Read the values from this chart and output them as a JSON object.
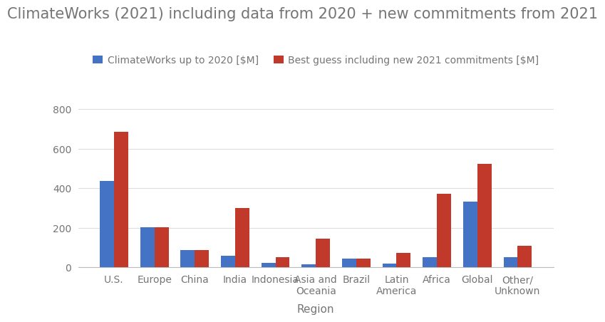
{
  "title": "ClimateWorks (2021) including data from 2020 + new commitments from 2021",
  "xlabel": "Region",
  "categories": [
    "U.S.",
    "Europe",
    "China",
    "India",
    "Indonesia",
    "Asia and\nOceania",
    "Brazil",
    "Latin\nAmerica",
    "Africa",
    "Global",
    "Other/\nUnknown"
  ],
  "series1_label": "ClimateWorks up to 2020 [$M]",
  "series2_label": "Best guess including new 2021 commitments [$M]",
  "series1_values": [
    435,
    202,
    88,
    58,
    22,
    15,
    43,
    18,
    52,
    333,
    50
  ],
  "series2_values": [
    685,
    203,
    88,
    300,
    53,
    145,
    43,
    73,
    370,
    523,
    108
  ],
  "color1": "#4472C4",
  "color2": "#C0392B",
  "ylim": [
    0,
    900
  ],
  "yticks": [
    0,
    200,
    400,
    600,
    800
  ],
  "title_fontsize": 15,
  "axis_label_fontsize": 11,
  "tick_fontsize": 10,
  "legend_fontsize": 10,
  "background_color": "#ffffff",
  "grid_color": "#dddddd",
  "text_color": "#757575"
}
